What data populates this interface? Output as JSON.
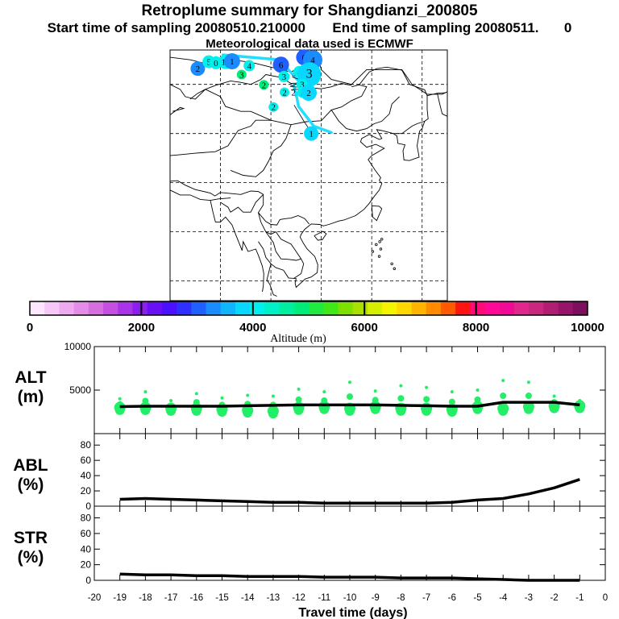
{
  "header": {
    "title": "Retroplume summary for Shangdianzi_200805",
    "start_label": "Start time of sampling 20080510.210000",
    "end_label": "End time of sampling 20080511.",
    "end_value": "0",
    "met_label": "Meteorological data used is ECMWF"
  },
  "colors": {
    "colorbar": [
      "#ffe6ff",
      "#f7c8f7",
      "#efaaef",
      "#e38de8",
      "#d66ee0",
      "#c44fe0",
      "#a935e8",
      "#8a1ff0",
      "#6a10f5",
      "#4a10ff",
      "#2f2fff",
      "#2060ff",
      "#1a8cff",
      "#10b4ff",
      "#08d8ff",
      "#00f0ee",
      "#00f0c8",
      "#00eea0",
      "#00ec78",
      "#20ea40",
      "#40e818",
      "#7ee000",
      "#aae000",
      "#d6ee00",
      "#f4f400",
      "#ffd800",
      "#ffb400",
      "#ff8c00",
      "#ff5a00",
      "#ff1414",
      "#ff0a78",
      "#ff0a96",
      "#f00a96",
      "#e0288c",
      "#c8287d",
      "#b01e73",
      "#961469",
      "#7d0f5f"
    ],
    "plume_line": "#22ddff",
    "alt_marker": "#22ee66",
    "series_line": "#000000"
  },
  "map": {
    "plume_labels": [
      {
        "text": "2",
        "lon": 85.5,
        "lat": 53.2,
        "color": "#1a8cff",
        "r": 9
      },
      {
        "text": "5",
        "lon": 87.7,
        "lat": 54.6,
        "color": "#00f0ee",
        "r": 8
      },
      {
        "text": "0",
        "lon": 89.1,
        "lat": 54.4,
        "color": "#00f0ee",
        "r": 8
      },
      {
        "text": "11",
        "lon": 91.0,
        "lat": 54.6,
        "color": "#00f0ee",
        "r": 9
      },
      {
        "text": "1",
        "lon": 92.3,
        "lat": 54.7,
        "color": "#1a8cff",
        "r": 10
      },
      {
        "text": "4",
        "lon": 95.7,
        "lat": 53.8,
        "color": "#00f0ee",
        "r": 7
      },
      {
        "text": "1",
        "lon": 102.2,
        "lat": 54.8,
        "color": "#000000",
        "r": 0
      },
      {
        "text": "6",
        "lon": 102.0,
        "lat": 54.0,
        "color": "#2060ff",
        "r": 10
      },
      {
        "text": "0",
        "lon": 106.6,
        "lat": 55.5,
        "color": "#2060ff",
        "r": 10
      },
      {
        "text": "4",
        "lon": 108.3,
        "lat": 55.0,
        "color": "#1a8cff",
        "r": 12
      },
      {
        "text": "3",
        "lon": 94.2,
        "lat": 52.0,
        "color": "#00ec78",
        "r": 6
      },
      {
        "text": "3",
        "lon": 102.6,
        "lat": 51.6,
        "color": "#00f0ee",
        "r": 7
      },
      {
        "text": "3",
        "lon": 104.6,
        "lat": 52.3,
        "color": "#000000",
        "r": 0
      },
      {
        "text": "4",
        "lon": 105.6,
        "lat": 52.6,
        "color": "#00f0ee",
        "r": 7
      },
      {
        "text": "3",
        "lon": 107.6,
        "lat": 52.0,
        "color": "#08d8ff",
        "r": 15
      },
      {
        "text": "2",
        "lon": 98.6,
        "lat": 49.9,
        "color": "#00ec78",
        "r": 6
      },
      {
        "text": "3",
        "lon": 106.2,
        "lat": 50.0,
        "color": "#00f0ee",
        "r": 7
      },
      {
        "text": "2",
        "lon": 102.7,
        "lat": 48.4,
        "color": "#00f0ee",
        "r": 6
      },
      {
        "text": "2",
        "lon": 104.5,
        "lat": 48.4,
        "color": "#000000",
        "r": 0
      },
      {
        "text": "2",
        "lon": 106.3,
        "lat": 48.4,
        "color": "#00f0ee",
        "r": 7
      },
      {
        "text": "2",
        "lon": 107.5,
        "lat": 48.3,
        "color": "#08d8ff",
        "r": 10
      },
      {
        "text": "2",
        "lon": 100.5,
        "lat": 45.4,
        "color": "#00f0ee",
        "r": 6
      },
      {
        "text": "4",
        "lon": 107.0,
        "lat": 40.5,
        "color": "#000000",
        "r": 0
      },
      {
        "text": "1",
        "lon": 108.0,
        "lat": 40.0,
        "color": "#08d8ff",
        "r": 9
      }
    ]
  },
  "colorbar_axis": {
    "label": "Altitude (m)",
    "ticks": [
      "0",
      "2000",
      "4000",
      "6000",
      "8000",
      "10000"
    ]
  },
  "chart_data": [
    {
      "type": "line",
      "title": "ALT",
      "ylabel": "ALT (m)",
      "ylabel_parts": [
        "ALT",
        "(m)"
      ],
      "x": [
        -19,
        -18,
        -17,
        -16,
        -15,
        -14,
        -13,
        -12,
        -11,
        -10,
        -9,
        -8,
        -7,
        -6,
        -5,
        -4,
        -3,
        -2,
        -1
      ],
      "values": [
        3100,
        3150,
        3150,
        3150,
        3150,
        3200,
        3250,
        3300,
        3300,
        3300,
        3300,
        3250,
        3200,
        3150,
        3150,
        3600,
        3600,
        3600,
        3300
      ],
      "marker_ranges": [
        [
          2700,
          4000
        ],
        [
          2700,
          4800
        ],
        [
          2600,
          3800
        ],
        [
          2600,
          4600
        ],
        [
          2500,
          4100
        ],
        [
          2400,
          4400
        ],
        [
          2300,
          4300
        ],
        [
          2700,
          5100
        ],
        [
          2800,
          4800
        ],
        [
          2600,
          5900
        ],
        [
          2800,
          4900
        ],
        [
          2600,
          5500
        ],
        [
          2600,
          5300
        ],
        [
          2500,
          4800
        ],
        [
          2800,
          5000
        ],
        [
          2600,
          6100
        ],
        [
          2800,
          5900
        ],
        [
          2900,
          4300
        ],
        [
          2900,
          3800
        ]
      ],
      "ylim": [
        0,
        10000
      ],
      "yticks": [
        "10000",
        "5000"
      ],
      "ytick_values": [
        10000,
        5000
      ]
    },
    {
      "type": "line",
      "title": "ABL",
      "ylabel": "ABL (%)",
      "ylabel_parts": [
        "ABL",
        "(%)"
      ],
      "x": [
        -19,
        -18,
        -17,
        -16,
        -15,
        -14,
        -13,
        -12,
        -11,
        -10,
        -9,
        -8,
        -7,
        -6,
        -5,
        -4,
        -3,
        -2,
        -1
      ],
      "values": [
        9,
        10,
        9,
        8,
        7,
        6,
        5,
        5,
        4,
        4,
        4,
        4,
        4,
        5,
        8,
        10,
        16,
        24,
        35
      ],
      "ylim": [
        0,
        95
      ],
      "yticks": [
        "80",
        "60",
        "40",
        "20",
        "0"
      ],
      "ytick_values": [
        80,
        60,
        40,
        20,
        0
      ]
    },
    {
      "type": "line",
      "title": "STR",
      "ylabel": "STR (%)",
      "ylabel_parts": [
        "STR",
        "(%)"
      ],
      "x": [
        -19,
        -18,
        -17,
        -16,
        -15,
        -14,
        -13,
        -12,
        -11,
        -10,
        -9,
        -8,
        -7,
        -6,
        -5,
        -4,
        -3,
        -2,
        -1
      ],
      "values": [
        8,
        7,
        7,
        6,
        6,
        5,
        5,
        5,
        4,
        4,
        4,
        3,
        3,
        3,
        2,
        1,
        0,
        0,
        0
      ],
      "ylim": [
        0,
        95
      ],
      "yticks": [
        "80",
        "60",
        "40",
        "20",
        "0"
      ],
      "ytick_values": [
        80,
        60,
        40,
        20,
        0
      ],
      "xlabel": "Travel time (days)",
      "xticks": [
        "-20",
        "-19",
        "-18",
        "-17",
        "-16",
        "-15",
        "-14",
        "-13",
        "-12",
        "-11",
        "-10",
        "-9",
        "-8",
        "-7",
        "-6",
        "-5",
        "-4",
        "-3",
        "-2",
        "-1",
        "0"
      ],
      "xtick_values": [
        -20,
        -19,
        -18,
        -17,
        -16,
        -15,
        -14,
        -13,
        -12,
        -11,
        -10,
        -9,
        -8,
        -7,
        -6,
        -5,
        -4,
        -3,
        -2,
        -1,
        0
      ]
    }
  ]
}
